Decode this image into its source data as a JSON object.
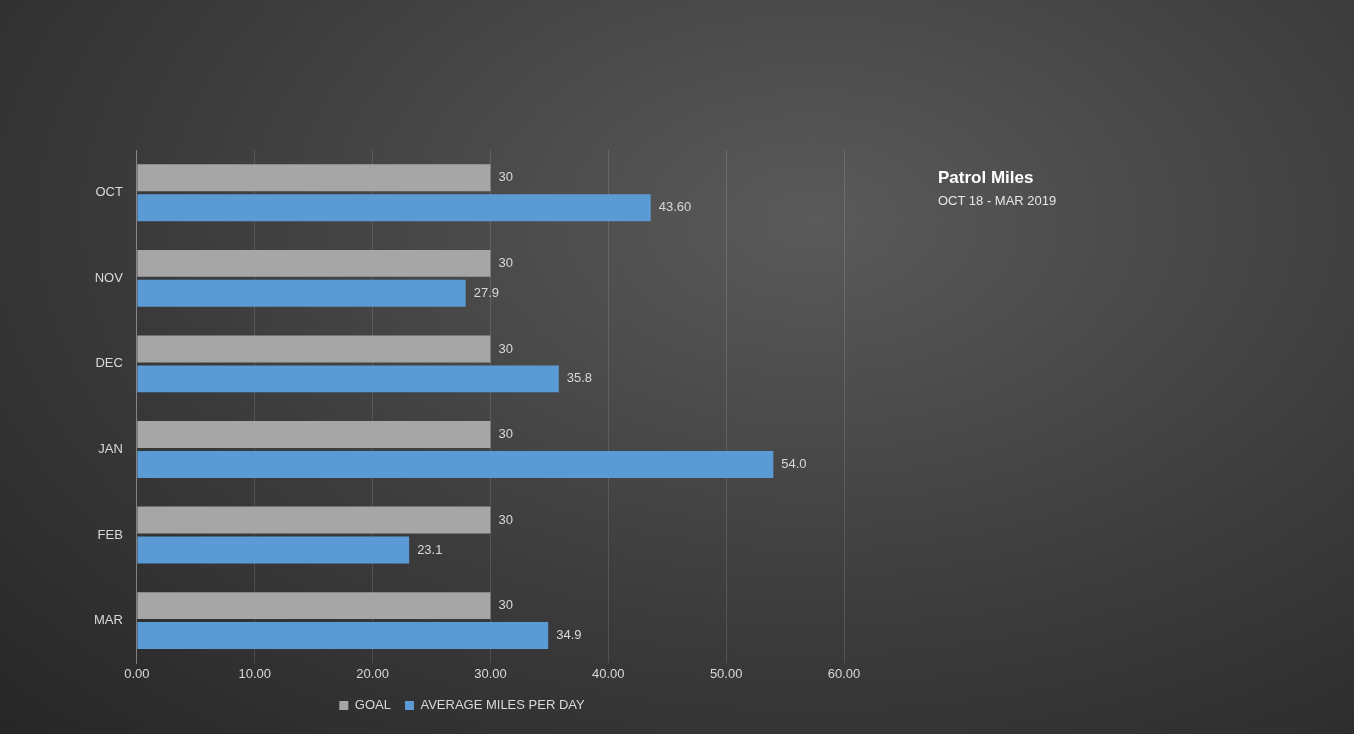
{
  "chart_data": {
    "type": "bar",
    "orientation": "horizontal",
    "title": "Patrol Miles",
    "subtitle": "OCT 18 - MAR 2019",
    "categories": [
      "OCT",
      "NOV",
      "DEC",
      "JAN",
      "FEB",
      "MAR"
    ],
    "series": [
      {
        "name": "GOAL",
        "color": "#a6a6a6",
        "values": [
          30,
          30,
          30,
          30,
          30,
          30
        ],
        "value_labels": [
          "30",
          "30",
          "30",
          "30",
          "30",
          "30"
        ]
      },
      {
        "name": "AVERAGE MILES PER DAY",
        "color": "#5b9bd5",
        "values": [
          43.6,
          27.9,
          35.8,
          54.0,
          23.1,
          34.9
        ],
        "value_labels": [
          "43.60",
          "27.9",
          "35.8",
          "54.0",
          "23.1",
          "34.9"
        ]
      }
    ],
    "xlim": [
      0,
      60
    ],
    "xticks": [
      {
        "value": 0,
        "label": "0.00"
      },
      {
        "value": 10,
        "label": "10.00"
      },
      {
        "value": 20,
        "label": "20.00"
      },
      {
        "value": 30,
        "label": "30.00"
      },
      {
        "value": 40,
        "label": "40.00"
      },
      {
        "value": 50,
        "label": "50.00"
      },
      {
        "value": 60,
        "label": "60.00"
      }
    ],
    "grid": "x",
    "legend": "bottom"
  }
}
